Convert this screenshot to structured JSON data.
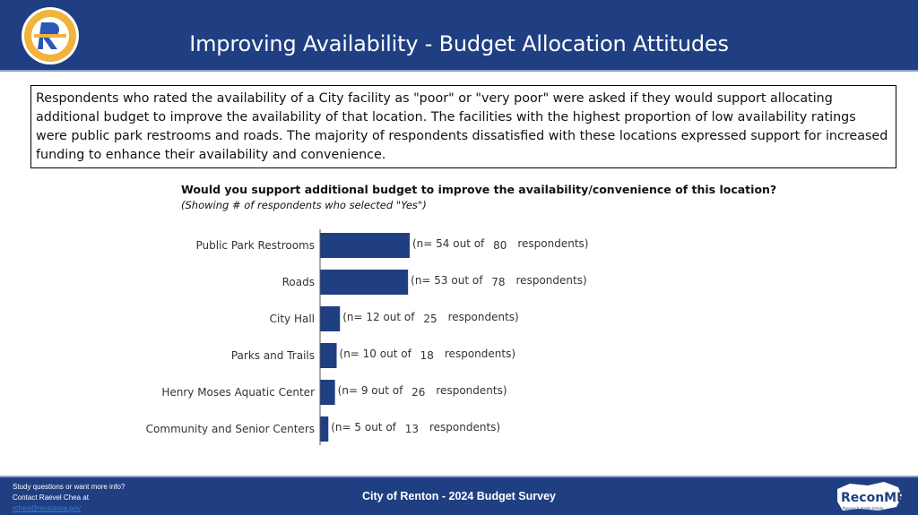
{
  "header": {
    "title": "Improving Availability - Budget Allocation Attitudes",
    "logo_text": "CITY OF RENTON",
    "colors": {
      "background": "#1f3f82",
      "logo_gold": "#f2b33d",
      "logo_blue": "#2a58b5"
    }
  },
  "summary": {
    "text": "Respondents who rated the availability of a City facility as \"poor\" or \"very poor\" were asked if they would support allocating additional budget to improve the availability of that location. The facilities with the highest proportion of low availability ratings were public park restrooms and roads. The majority of respondents dissatisfied with these locations expressed support for increased funding to enhance their availability and convenience."
  },
  "chart_data": {
    "type": "bar",
    "orientation": "horizontal",
    "title": "Would you support additional budget to improve the availability/convenience of this location?",
    "subtitle": "(Showing # of respondents who selected \"Yes\")",
    "categories": [
      "Public Park Restrooms",
      "Roads",
      "City Hall",
      "Parks and Trails",
      "Henry Moses Aquatic Center",
      "Community and Senior Centers"
    ],
    "values": [
      54,
      53,
      12,
      10,
      9,
      5
    ],
    "totals": [
      80,
      78,
      25,
      18,
      26,
      13
    ],
    "label_prefix": "(n=",
    "label_middle": "out of",
    "label_suffix": "respondents)",
    "xlim": [
      0,
      54
    ],
    "grid": false,
    "legend": "none",
    "bar_color": "#1f3f82"
  },
  "footer": {
    "note_line1": "Study questions or want more info?",
    "note_line2": "Contact Raevel Chea at",
    "note_link": "rchea@rentonwa.gov",
    "title": "City of Renton - 2024 Budget Survey",
    "logo_text": "ReconMR",
    "logo_tagline": "Research made simple"
  }
}
